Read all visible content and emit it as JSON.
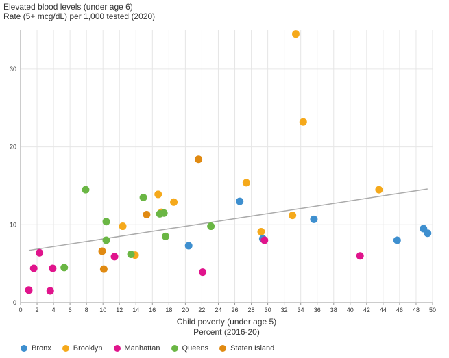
{
  "chart_data": {
    "type": "scatter",
    "title": "Elevated blood levels (under age 6)",
    "subtitle": "Rate (5+ mcg/dL) per 1,000 tested (2020)",
    "xlabel": "Child poverty (under age 5)",
    "xlabel2": "Percent  (2016-20)",
    "ylabel": "",
    "xlim": [
      0,
      50
    ],
    "ylim": [
      0,
      35
    ],
    "x_ticks": [
      0,
      2,
      4,
      6,
      8,
      10,
      12,
      14,
      16,
      18,
      20,
      22,
      24,
      26,
      28,
      30,
      32,
      34,
      36,
      38,
      40,
      42,
      44,
      46,
      48,
      50
    ],
    "y_ticks": [
      0,
      10,
      20,
      30
    ],
    "grid": true,
    "legend_position": "bottom",
    "trendline": {
      "x": [
        1,
        49.4
      ],
      "y": [
        6.7,
        14.6
      ],
      "color": "#aaaaaa"
    },
    "series": [
      {
        "name": "Bronx",
        "color": "#3e8fcf",
        "points": [
          [
            20.4,
            7.3
          ],
          [
            26.6,
            13.0
          ],
          [
            29.4,
            8.2
          ],
          [
            35.6,
            10.7
          ],
          [
            45.7,
            8.0
          ],
          [
            48.9,
            9.5
          ],
          [
            49.4,
            8.9
          ]
        ]
      },
      {
        "name": "Brooklyn",
        "color": "#f5a91b",
        "points": [
          [
            12.4,
            9.8
          ],
          [
            13.9,
            6.1
          ],
          [
            16.7,
            13.9
          ],
          [
            17.1,
            11.6
          ],
          [
            18.6,
            12.9
          ],
          [
            27.4,
            15.4
          ],
          [
            29.2,
            9.1
          ],
          [
            33.0,
            11.2
          ],
          [
            33.4,
            34.5
          ],
          [
            34.3,
            23.2
          ],
          [
            43.5,
            14.5
          ]
        ]
      },
      {
        "name": "Manhattan",
        "color": "#e0148c",
        "points": [
          [
            1.0,
            1.6
          ],
          [
            1.6,
            4.4
          ],
          [
            2.3,
            6.4
          ],
          [
            3.6,
            1.5
          ],
          [
            3.9,
            4.4
          ],
          [
            11.4,
            5.9
          ],
          [
            22.1,
            3.9
          ],
          [
            29.6,
            8.0
          ],
          [
            41.2,
            6.0
          ]
        ]
      },
      {
        "name": "Queens",
        "color": "#6ab644",
        "points": [
          [
            5.3,
            4.5
          ],
          [
            7.9,
            14.5
          ],
          [
            10.4,
            10.4
          ],
          [
            10.4,
            8.0
          ],
          [
            13.4,
            6.2
          ],
          [
            14.9,
            13.5
          ],
          [
            16.9,
            11.4
          ],
          [
            17.4,
            11.5
          ],
          [
            17.6,
            8.5
          ],
          [
            23.1,
            9.8
          ]
        ]
      },
      {
        "name": "Staten Island",
        "color": "#e08a12",
        "points": [
          [
            9.9,
            6.6
          ],
          [
            10.1,
            4.3
          ],
          [
            15.3,
            11.3
          ],
          [
            21.6,
            18.4
          ]
        ]
      }
    ]
  }
}
